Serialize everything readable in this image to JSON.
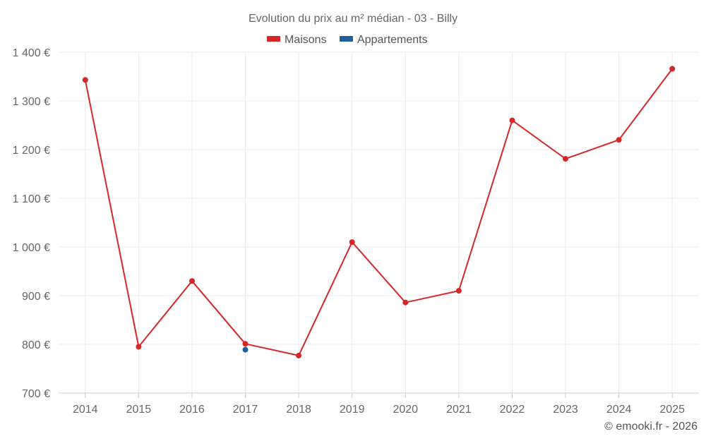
{
  "chart_data": {
    "type": "line",
    "title": "Evolution du prix au m² médian - 03 - Billy",
    "categories": [
      "2014",
      "2015",
      "2016",
      "2017",
      "2018",
      "2019",
      "2020",
      "2021",
      "2022",
      "2023",
      "2024",
      "2025"
    ],
    "series": [
      {
        "name": "Maisons",
        "color": "#d62728",
        "values": [
          1343,
          795,
          930,
          801,
          777,
          1010,
          886,
          910,
          1260,
          1181,
          1220,
          1366
        ]
      },
      {
        "name": "Appartements",
        "color": "#1f5f9a",
        "values": [
          null,
          null,
          null,
          789,
          null,
          null,
          null,
          null,
          null,
          null,
          null,
          null
        ]
      }
    ],
    "ylim": [
      700,
      1400
    ],
    "yticks": [
      700,
      800,
      900,
      1000,
      1100,
      1200,
      1300,
      1400
    ],
    "ytick_labels": [
      "700 €",
      "800 €",
      "900 €",
      "1 000 €",
      "1 100 €",
      "1 200 €",
      "1 300 €",
      "1 400 €"
    ],
    "xlabel": "",
    "ylabel": "",
    "grid": true,
    "legend_position": "top-center"
  },
  "credit": "© emooki.fr - 2026"
}
